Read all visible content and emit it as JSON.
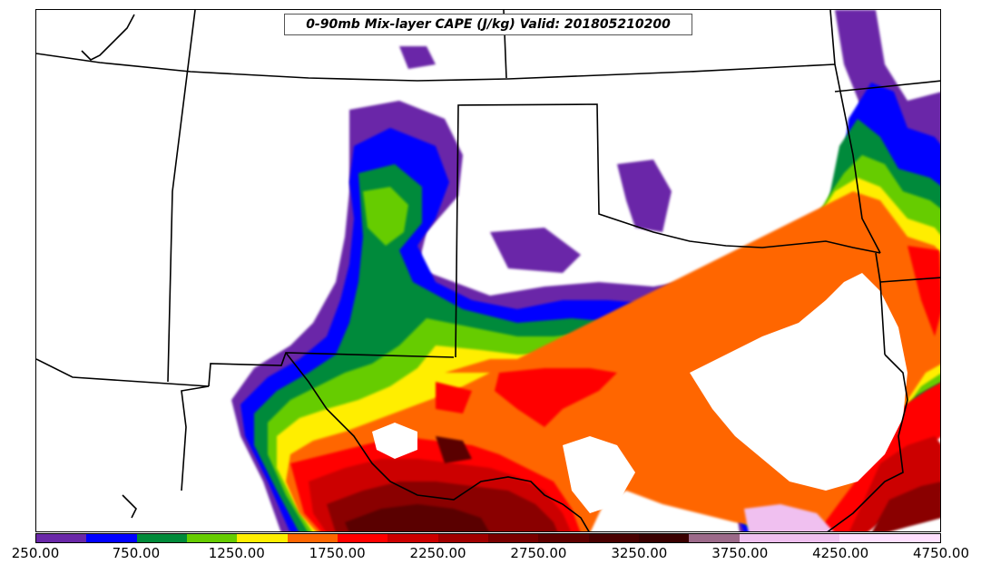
{
  "title": "0-90mb Mix-layer CAPE (J/kg) Valid: 201805210200",
  "colorbar": {
    "levels": [
      250,
      500,
      750,
      1000,
      1250,
      1500,
      1750,
      2000,
      2250,
      2500,
      2750,
      3000,
      3250,
      3500,
      3750,
      4000,
      4250,
      4500,
      4750
    ],
    "colors": [
      "#6a28a8",
      "#0000ff",
      "#008a3a",
      "#66cc00",
      "#ffee00",
      "#ff6600",
      "#ff0000",
      "#cc0000",
      "#a00000",
      "#7a0000",
      "#600000",
      "#4a0000",
      "#3a0000",
      "#9c6a8a",
      "#f0c0f0",
      "#f0c0f0",
      "#ffe0ff",
      "#ffe0ff"
    ],
    "tick_labels": [
      "250.00",
      "750.00",
      "1250.00",
      "1750.00",
      "2250.00",
      "2750.00",
      "3250.00",
      "3750.00",
      "4250.00",
      "4750.00"
    ]
  }
}
